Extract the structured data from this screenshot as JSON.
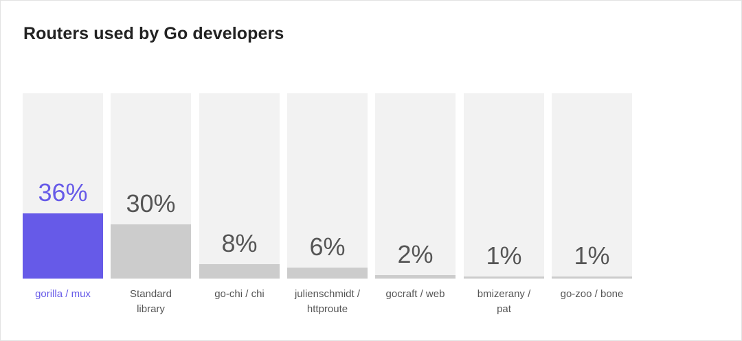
{
  "chart_data": {
    "type": "bar",
    "title": "Routers used by Go developers",
    "categories": [
      "gorilla / mux",
      "Standard library",
      "go-chi / chi",
      "julienschmidt / httproute",
      "gocraft / web",
      "bmizerany / pat",
      "go-zoo / bone"
    ],
    "category_lines": [
      [
        "gorilla / mux"
      ],
      [
        "Standard",
        "library"
      ],
      [
        "go-chi / chi"
      ],
      [
        "julienschmidt /",
        "httproute"
      ],
      [
        "gocraft / web"
      ],
      [
        "bmizerany /",
        "pat"
      ],
      [
        "go-zoo / bone"
      ]
    ],
    "values": [
      36,
      30,
      8,
      6,
      2,
      1,
      1
    ],
    "value_labels": [
      "36%",
      "30%",
      "8%",
      "6%",
      "2%",
      "1%",
      "1%"
    ],
    "ylim": [
      0,
      100
    ],
    "highlight_index": 0,
    "colors": {
      "highlight": "#665ae8",
      "bar": "#cccccc",
      "track": "#f2f2f2",
      "text": "#555555"
    }
  }
}
